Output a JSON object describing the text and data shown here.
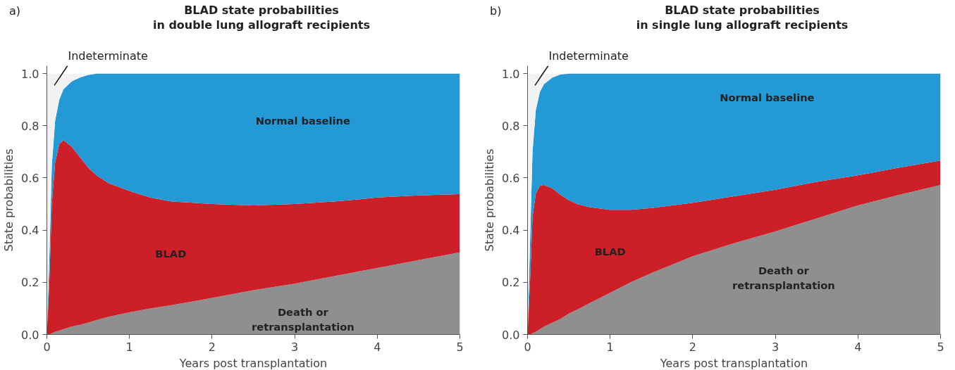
{
  "chart_data": [
    {
      "type": "area",
      "stacked": true,
      "title": "BLAD state probabilities\nin double lung allograft recipients",
      "xlabel": "Years post transplantation",
      "ylabel": "State probabilities",
      "annotations": [
        "a)"
      ],
      "x": [
        0,
        0.03,
        0.06,
        0.1,
        0.15,
        0.2,
        0.3,
        0.4,
        0.5,
        0.6,
        0.75,
        1,
        1.25,
        1.5,
        2,
        2.5,
        3,
        3.5,
        4,
        4.5,
        5
      ],
      "xlim": [
        0,
        5
      ],
      "xticks": [
        0,
        1,
        2,
        3,
        4,
        5
      ],
      "ylim": [
        0,
        1.03
      ],
      "yticks": [
        {
          "value": 0,
          "label": "0.0"
        },
        {
          "value": 0.2,
          "label": "0.2"
        },
        {
          "value": 0.4,
          "label": "0.4"
        },
        {
          "value": 0.6,
          "label": "0.6"
        },
        {
          "value": 0.8,
          "label": "0.8"
        },
        {
          "value": 1,
          "label": "1.0"
        }
      ],
      "series": [
        {
          "name": "Death or\nretransplantation",
          "color": "#8f8f8f",
          "values": [
            0,
            0,
            0.005,
            0.01,
            0.015,
            0.02,
            0.03,
            0.037,
            0.045,
            0.055,
            0.068,
            0.085,
            0.1,
            0.112,
            0.14,
            0.17,
            0.195,
            0.225,
            0.255,
            0.285,
            0.315
          ]
        },
        {
          "name": "BLAD",
          "color": "#cc1f28",
          "values": [
            0,
            0.2,
            0.495,
            0.65,
            0.715,
            0.725,
            0.69,
            0.643,
            0.595,
            0.555,
            0.512,
            0.465,
            0.425,
            0.398,
            0.36,
            0.325,
            0.305,
            0.285,
            0.27,
            0.248,
            0.223
          ]
        },
        {
          "name": "Normal baseline",
          "color": "#2399d6",
          "values": [
            0,
            0.1,
            0.15,
            0.16,
            0.17,
            0.195,
            0.25,
            0.305,
            0.355,
            0.39,
            0.42,
            0.45,
            0.475,
            0.49,
            0.5,
            0.505,
            0.5,
            0.49,
            0.475,
            0.467,
            0.462
          ]
        },
        {
          "name": "Indeterminate",
          "color": "#f2f2f2",
          "x": [
            0,
            0.03,
            0.06,
            0.1,
            0.15,
            0.2,
            0.3,
            0.4,
            0.5,
            0.6
          ],
          "values": [
            1,
            0.7,
            0.35,
            0.18,
            0.1,
            0.06,
            0.03,
            0.015,
            0.005,
            0
          ]
        }
      ]
    },
    {
      "type": "area",
      "stacked": true,
      "title": "BLAD state probabilities\nin single lung allograft recipients",
      "xlabel": "Years post transplantation",
      "ylabel": "State probabilities",
      "annotations": [
        "b)"
      ],
      "x": [
        0,
        0.03,
        0.06,
        0.1,
        0.15,
        0.2,
        0.3,
        0.4,
        0.5,
        0.6,
        0.75,
        1,
        1.25,
        1.5,
        2,
        2.5,
        3,
        3.5,
        4,
        4.5,
        5
      ],
      "xlim": [
        0,
        5
      ],
      "xticks": [
        0,
        1,
        2,
        3,
        4,
        5
      ],
      "ylim": [
        0,
        1.03
      ],
      "yticks": [
        {
          "value": 0,
          "label": "0.0"
        },
        {
          "value": 0.2,
          "label": "0.2"
        },
        {
          "value": 0.4,
          "label": "0.4"
        },
        {
          "value": 0.6,
          "label": "0.6"
        },
        {
          "value": 0.8,
          "label": "0.8"
        },
        {
          "value": 1,
          "label": "1.0"
        }
      ],
      "series": [
        {
          "name": "Death or\nretransplantation",
          "color": "#8f8f8f",
          "values": [
            0,
            0,
            0.005,
            0.01,
            0.02,
            0.03,
            0.045,
            0.06,
            0.08,
            0.095,
            0.12,
            0.16,
            0.2,
            0.235,
            0.3,
            0.35,
            0.395,
            0.445,
            0.495,
            0.535,
            0.573
          ]
        },
        {
          "name": "BLAD",
          "color": "#cc1f28",
          "values": [
            0,
            0.2,
            0.445,
            0.53,
            0.55,
            0.543,
            0.515,
            0.475,
            0.435,
            0.405,
            0.368,
            0.318,
            0.278,
            0.25,
            0.205,
            0.18,
            0.16,
            0.14,
            0.115,
            0.105,
            0.094
          ]
        },
        {
          "name": "Normal baseline",
          "color": "#2399d6",
          "values": [
            0,
            0.15,
            0.25,
            0.32,
            0.36,
            0.387,
            0.425,
            0.462,
            0.485,
            0.5,
            0.512,
            0.522,
            0.522,
            0.515,
            0.495,
            0.47,
            0.445,
            0.415,
            0.39,
            0.36,
            0.333
          ]
        },
        {
          "name": "Indeterminate",
          "color": "#f2f2f2",
          "x": [
            0,
            0.03,
            0.06,
            0.1,
            0.15,
            0.2,
            0.3,
            0.4,
            0.5
          ],
          "values": [
            1,
            0.65,
            0.3,
            0.14,
            0.07,
            0.04,
            0.015,
            0.003,
            0
          ]
        }
      ]
    }
  ]
}
